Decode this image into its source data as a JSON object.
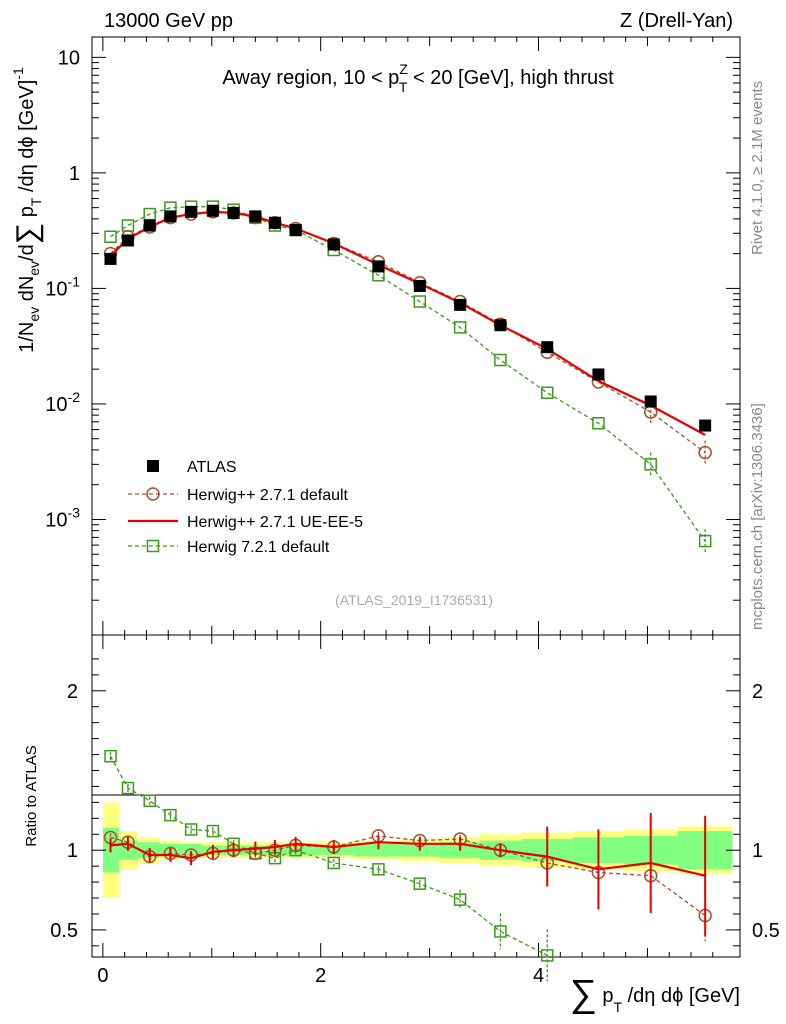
{
  "header": {
    "left": "13000 GeV pp",
    "right": "Z (Drell-Yan)"
  },
  "side_text": {
    "right_top": "Rivet 4.1.0, ≥ 2.1M events",
    "right_bottom": "mcplots.cern.ch [arXiv:1306.3436]"
  },
  "colors": {
    "data": "#000000",
    "h271": "#a0522d",
    "ue": "#e60000",
    "h721": "#3a9a1a",
    "band_inner": "#80ff80",
    "band_outer": "#ffff80"
  },
  "chart_data": [
    {
      "type": "scatter",
      "name": "main",
      "title": "Away region, 10 < p_T^Z < 20 [GeV], high thrust",
      "watermark": "(ATLAS_2019_I1736531)",
      "ylabel": "1/N_ev dN_ev/d∑ p_T /dη dϕ [GeV]^-1",
      "yscale": "log",
      "xlim": [
        -0.1,
        5.85
      ],
      "ylim": [
        0.0001,
        15
      ],
      "ytick_labels": [
        "10^-3",
        "10^-2",
        "10^-1",
        "1",
        "10"
      ],
      "legend": [
        "ATLAS",
        "Herwig++ 2.7.1 default",
        "Herwig++ 2.7.1 UE-EE-5",
        "Herwig 7.2.1 default"
      ],
      "x": [
        0.07,
        0.23,
        0.43,
        0.62,
        0.81,
        1.01,
        1.2,
        1.4,
        1.58,
        1.77,
        2.12,
        2.53,
        2.91,
        3.28,
        3.65,
        4.08,
        4.55,
        5.03,
        5.53
      ],
      "series": [
        {
          "name": "ATLAS",
          "style": "marker-square",
          "values": [
            0.18,
            0.26,
            0.35,
            0.42,
            0.46,
            0.47,
            0.45,
            0.42,
            0.37,
            0.32,
            0.24,
            0.155,
            0.105,
            0.072,
            0.048,
            0.031,
            0.018,
            0.0105,
            0.0065
          ]
        },
        {
          "name": "Herwig++ 2.7.1 default",
          "style": "dashed-circle",
          "values": [
            0.2,
            0.28,
            0.34,
            0.41,
            0.44,
            0.46,
            0.45,
            0.41,
            0.37,
            0.33,
            0.245,
            0.17,
            0.112,
            0.077,
            0.049,
            0.028,
            0.0155,
            0.0085,
            0.0038
          ]
        },
        {
          "name": "Herwig++ 2.7.1 UE-EE-5",
          "style": "solid-line",
          "values": [
            0.19,
            0.27,
            0.34,
            0.41,
            0.44,
            0.46,
            0.45,
            0.42,
            0.37,
            0.33,
            0.245,
            0.16,
            0.11,
            0.075,
            0.048,
            0.03,
            0.0158,
            0.0097,
            0.0054
          ]
        },
        {
          "name": "Herwig 7.2.1 default",
          "style": "dashed-square",
          "values": [
            0.28,
            0.35,
            0.44,
            0.5,
            0.51,
            0.51,
            0.48,
            0.41,
            0.35,
            0.32,
            0.215,
            0.13,
            0.077,
            0.046,
            0.024,
            0.0125,
            0.0068,
            0.003,
            0.00065
          ]
        }
      ]
    },
    {
      "type": "scatter",
      "name": "ratio",
      "ylabel": "Ratio to ATLAS",
      "xlabel": "∑ p_T /dη dϕ [GeV]",
      "xlim": [
        -0.1,
        5.85
      ],
      "ylim": [
        0.33,
        2.35
      ],
      "ytick_labels": [
        "0.5",
        "1",
        "2"
      ],
      "xtick_labels": [
        "0",
        "2",
        "4"
      ],
      "x": [
        0.07,
        0.23,
        0.43,
        0.62,
        0.81,
        1.01,
        1.2,
        1.4,
        1.58,
        1.77,
        2.12,
        2.53,
        2.91,
        3.28,
        3.65,
        4.08,
        4.55,
        5.03,
        5.53
      ],
      "bin_edges": [
        0,
        0.15,
        0.32,
        0.52,
        0.72,
        0.91,
        1.11,
        1.3,
        1.49,
        1.68,
        1.87,
        2.31,
        2.74,
        3.09,
        3.46,
        3.85,
        4.31,
        4.78,
        5.28,
        5.78
      ],
      "band_inner_halfwidth": [
        0.14,
        0.06,
        0.05,
        0.04,
        0.04,
        0.03,
        0.03,
        0.03,
        0.03,
        0.03,
        0.03,
        0.04,
        0.04,
        0.05,
        0.06,
        0.07,
        0.08,
        0.09,
        0.12
      ],
      "band_outer_halfwidth": [
        0.3,
        0.12,
        0.08,
        0.06,
        0.05,
        0.05,
        0.05,
        0.05,
        0.05,
        0.05,
        0.05,
        0.06,
        0.07,
        0.08,
        0.1,
        0.11,
        0.12,
        0.13,
        0.15
      ],
      "series": [
        {
          "name": "Herwig++ 2.7.1 default",
          "style": "dashed-circle",
          "values": [
            1.08,
            1.05,
            0.96,
            0.98,
            0.97,
            0.98,
            1.0,
            0.98,
            1.0,
            1.03,
            1.02,
            1.09,
            1.06,
            1.07,
            1.0,
            0.92,
            0.86,
            0.84,
            0.59
          ]
        },
        {
          "name": "Herwig++ 2.7.1 UE-EE-5",
          "style": "solid-line",
          "values": [
            1.03,
            1.04,
            0.97,
            0.97,
            0.95,
            0.99,
            1.0,
            1.01,
            1.02,
            1.04,
            1.02,
            1.05,
            1.04,
            1.04,
            1.0,
            0.96,
            0.88,
            0.92,
            0.84
          ]
        },
        {
          "name": "Herwig 7.2.1 default",
          "style": "dashed-square",
          "values": [
            1.59,
            1.39,
            1.31,
            1.22,
            1.13,
            1.12,
            1.04,
            0.98,
            0.95,
            1.0,
            0.92,
            0.88,
            0.79,
            0.69,
            0.49,
            0.34
          ]
        }
      ]
    }
  ]
}
